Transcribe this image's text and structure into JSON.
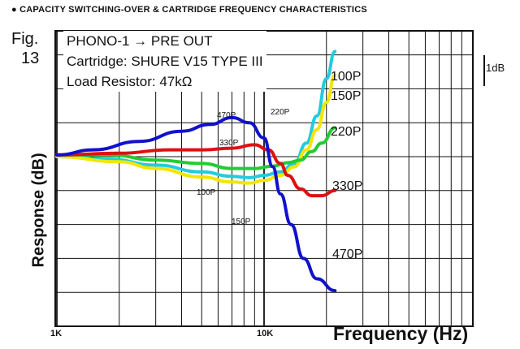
{
  "header": "● CAPACITY SWITCHING-OVER & CARTRIDGE FREQUENCY CHARACTERISTICS",
  "figure": {
    "label": "Fig.",
    "number": "13"
  },
  "info": {
    "line1": "PHONO-1 → PRE OUT",
    "line2": "Cartridge: SHURE V15 TYPE III",
    "line3": "Load Resistor: 47kΩ"
  },
  "scale_label": "1dB",
  "chart_data": {
    "type": "line",
    "title": "",
    "xlabel": "Frequency (Hz)",
    "ylabel": "Response (dB)",
    "x_scale": "log",
    "xlim": [
      1000,
      25000
    ],
    "ylim": [
      -4.8,
      3.9
    ],
    "x_ticks": [
      {
        "value": 1000,
        "label": "1K"
      },
      {
        "value": 10000,
        "label": "10K"
      }
    ],
    "grid": true,
    "series": [
      {
        "name": "100P",
        "color": "#22ccdd",
        "points": [
          [
            1000,
            0
          ],
          [
            1800,
            -0.08
          ],
          [
            3000,
            -0.25
          ],
          [
            5000,
            -0.45
          ],
          [
            7000,
            -0.58
          ],
          [
            8500,
            -0.62
          ],
          [
            10000,
            -0.55
          ],
          [
            12000,
            -0.45
          ],
          [
            14000,
            -0.2
          ],
          [
            16000,
            0.4
          ],
          [
            18000,
            1.2
          ],
          [
            20000,
            2.3
          ],
          [
            22000,
            3.1
          ]
        ]
      },
      {
        "name": "150P",
        "color": "#f2e600",
        "points": [
          [
            1000,
            0
          ],
          [
            2000,
            -0.15
          ],
          [
            3000,
            -0.35
          ],
          [
            5000,
            -0.6
          ],
          [
            7000,
            -0.75
          ],
          [
            8500,
            -0.78
          ],
          [
            10000,
            -0.7
          ],
          [
            12000,
            -0.55
          ],
          [
            14000,
            -0.3
          ],
          [
            16000,
            0.2
          ],
          [
            18000,
            0.8
          ],
          [
            20000,
            1.6
          ],
          [
            22000,
            2.4
          ]
        ]
      },
      {
        "name": "220P",
        "color": "#22cc33",
        "points": [
          [
            1000,
            0.05
          ],
          [
            1800,
            0.05
          ],
          [
            3000,
            -0.1
          ],
          [
            5000,
            -0.2
          ],
          [
            7000,
            -0.35
          ],
          [
            9000,
            -0.35
          ],
          [
            11000,
            -0.28
          ],
          [
            13000,
            -0.18
          ],
          [
            15000,
            -0.1
          ],
          [
            17000,
            0.15
          ],
          [
            19000,
            0.4
          ],
          [
            22000,
            0.85
          ]
        ]
      },
      {
        "name": "330P",
        "color": "#dd1111",
        "points": [
          [
            1000,
            0.05
          ],
          [
            2000,
            0.1
          ],
          [
            3500,
            0.2
          ],
          [
            5000,
            0.2
          ],
          [
            7000,
            0.25
          ],
          [
            9000,
            0.35
          ],
          [
            10500,
            0.2
          ],
          [
            12000,
            -0.2
          ],
          [
            13000,
            -0.55
          ],
          [
            15000,
            -0.95
          ],
          [
            17000,
            -1.15
          ],
          [
            19000,
            -1.15
          ],
          [
            22000,
            -1.0
          ]
        ]
      },
      {
        "name": "470P",
        "color": "#1111cc",
        "points": [
          [
            1000,
            0.05
          ],
          [
            1500,
            0.2
          ],
          [
            2500,
            0.45
          ],
          [
            4000,
            0.75
          ],
          [
            5500,
            0.95
          ],
          [
            7000,
            1.15
          ],
          [
            8500,
            1.0
          ],
          [
            10000,
            0.55
          ],
          [
            11000,
            -0.3
          ],
          [
            12000,
            -1.1
          ],
          [
            13500,
            -2.0
          ],
          [
            15500,
            -3.0
          ],
          [
            18000,
            -3.6
          ],
          [
            22000,
            -3.95
          ]
        ]
      }
    ],
    "annotations": [
      "470P",
      "220P",
      "330P",
      "100P",
      "150P"
    ]
  }
}
